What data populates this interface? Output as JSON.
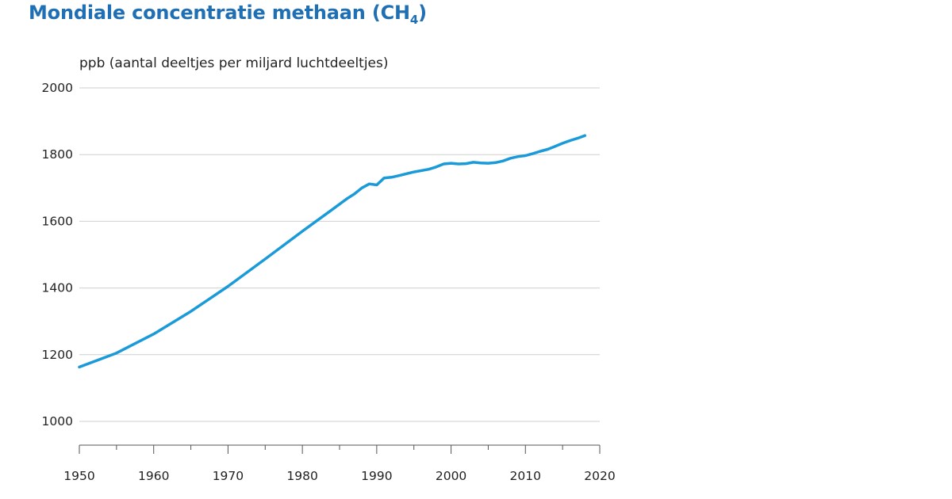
{
  "title_main": "Mondiale concentratie methaan (CH",
  "title_sub": "4",
  "title_end": ")",
  "colors": {
    "title": "#1f6fb5",
    "line": "#1a9ad9",
    "grid": "#cfcfcf",
    "axis": "#555555",
    "text": "#222222"
  },
  "chart_data": {
    "type": "line",
    "title": "Mondiale concentratie methaan (CH4)",
    "ylabel": "ppb (aantal deeltjes per miljard luchtdeeltjes)",
    "xlabel": "",
    "xlim": [
      1950,
      2020
    ],
    "ylim": [
      1000,
      2000
    ],
    "xticks": [
      1950,
      1960,
      1970,
      1980,
      1990,
      2000,
      2010,
      2020
    ],
    "yticks": [
      1000,
      1200,
      1400,
      1600,
      1800,
      2000
    ],
    "grid": "horizontal",
    "series": [
      {
        "x": [
          1950,
          1955,
          1960,
          1965,
          1970,
          1975,
          1980,
          1984,
          1986,
          1987,
          1988,
          1989,
          1990,
          1991,
          1992,
          1993,
          1995,
          1997,
          1998,
          1999,
          2000,
          2001,
          2002,
          2003,
          2004,
          2005,
          2006,
          2007,
          2008,
          2009,
          2010,
          2011,
          2012,
          2013,
          2014,
          2015,
          2016,
          2017,
          2018
        ],
        "y": [
          1163,
          1205,
          1262,
          1330,
          1405,
          1487,
          1570,
          1635,
          1668,
          1682,
          1700,
          1712,
          1709,
          1730,
          1732,
          1737,
          1748,
          1756,
          1763,
          1772,
          1774,
          1772,
          1773,
          1777,
          1775,
          1774,
          1776,
          1781,
          1789,
          1794,
          1797,
          1803,
          1810,
          1816,
          1825,
          1834,
          1842,
          1849,
          1857
        ]
      }
    ]
  }
}
